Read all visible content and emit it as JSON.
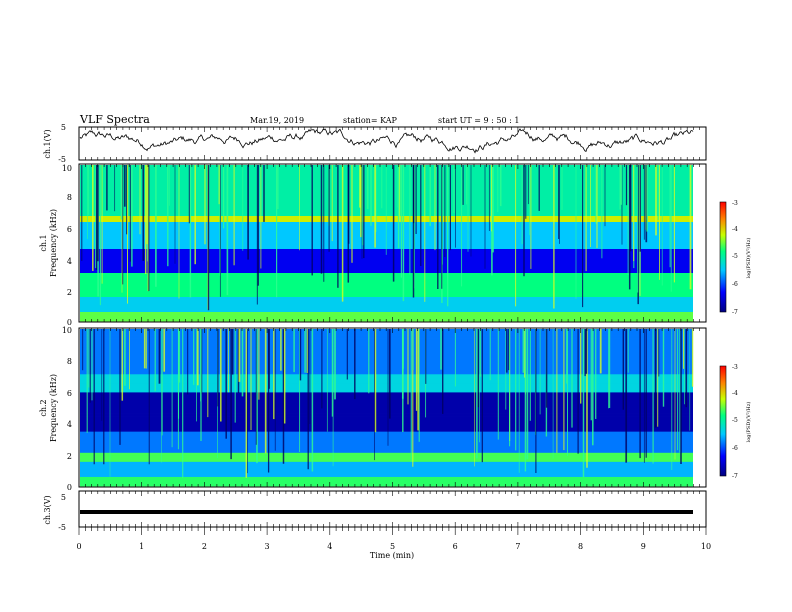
{
  "header": {
    "title": "VLF Spectra",
    "date": "Mar.19, 2019",
    "station": "station= KAP",
    "start": "start UT =  9 : 50 : 1"
  },
  "chart_data": [
    {
      "type": "line",
      "panel": "ch1-waveform",
      "ylabel": "ch.1(V)",
      "ylim": [
        -5,
        5
      ],
      "yticks": [
        "5",
        "-5"
      ],
      "xlim": [
        0,
        10
      ],
      "note": "noisy waveform oscillating around ~+1 V, amplitude ~±3 V"
    },
    {
      "type": "heatmap",
      "panel": "ch1-spectrogram",
      "ylabel": "ch.1\nFrequency (kHz)",
      "ylabel_line1": "ch.1",
      "ylabel_line2": "Frequency (kHz)",
      "ylim": [
        0,
        10
      ],
      "yticks": [
        "0",
        "2",
        "4",
        "6",
        "8",
        "10"
      ],
      "colorbar": {
        "label": "log(PSD)(V²/Hz)",
        "range": [
          -7,
          -3
        ],
        "ticks": [
          "-3",
          "-4",
          "-5",
          "-6",
          "-7"
        ]
      }
    },
    {
      "type": "heatmap",
      "panel": "ch2-spectrogram",
      "ylabel": "ch.2\nFrequency (kHz)",
      "ylabel_line1": "ch.2",
      "ylabel_line2": "Frequency (kHz)",
      "ylim": [
        0,
        10
      ],
      "yticks": [
        "0",
        "2",
        "4",
        "6",
        "8",
        "10"
      ],
      "colorbar": {
        "label": "log(PSD)(V²/Hz)",
        "range": [
          -7,
          -3
        ],
        "ticks": [
          "-3",
          "-4",
          "-5",
          "-6",
          "-7"
        ]
      }
    },
    {
      "type": "line",
      "panel": "ch3-waveform",
      "ylabel": "ch.3(V)",
      "ylim": [
        -5,
        5
      ],
      "yticks": [
        "5",
        "-5"
      ],
      "xlim": [
        0,
        10
      ],
      "note": "flat thick line at ~ -1 V"
    }
  ],
  "xaxis": {
    "label": "Time (min)",
    "ticks": [
      "0",
      "1",
      "2",
      "3",
      "4",
      "5",
      "6",
      "7",
      "8",
      "9",
      "10"
    ]
  },
  "colors": {
    "low": "#00008c",
    "mid": "#00c8ff",
    "high": "#ff0000"
  }
}
